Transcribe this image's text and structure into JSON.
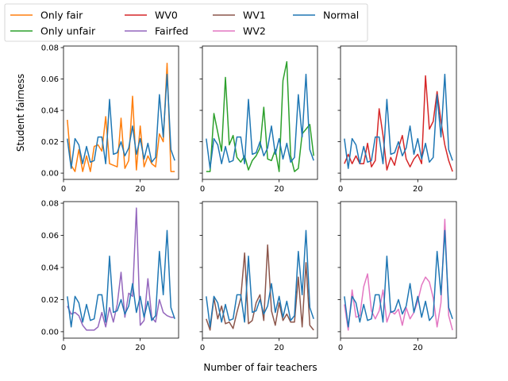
{
  "chart_data": {
    "type": "line",
    "ylabel": "Student fairness",
    "xlabel": "Number of fair teachers",
    "xlim": [
      0,
      30
    ],
    "ylim": [
      -0.004,
      0.081
    ],
    "xticks": [
      0,
      20
    ],
    "yticks": [
      0.0,
      0.02,
      0.04,
      0.06,
      0.08
    ],
    "ytick_labels": [
      "0.00",
      "0.02",
      "0.04",
      "0.06",
      "0.08"
    ],
    "legend": {
      "placement": "top-left, above axes",
      "entries": [
        {
          "name": "Only fair",
          "color": "#ff7f0e"
        },
        {
          "name": "Only unfair",
          "color": "#2ca02c"
        },
        {
          "name": "WV0",
          "color": "#d62728"
        },
        {
          "name": "Fairfed",
          "color": "#9467bd"
        },
        {
          "name": "WV1",
          "color": "#8c564b"
        },
        {
          "name": "WV2",
          "color": "#e377c2"
        },
        {
          "name": "Normal",
          "color": "#1f77b4"
        }
      ]
    },
    "x": [
      1,
      2,
      3,
      4,
      5,
      6,
      7,
      8,
      9,
      10,
      11,
      12,
      13,
      14,
      15,
      16,
      17,
      18,
      19,
      20,
      21,
      22,
      23,
      24,
      25,
      26,
      27,
      28,
      29
    ],
    "normal": {
      "name": "Normal",
      "color": "#1f77b4",
      "values": [
        0.022,
        0.003,
        0.022,
        0.018,
        0.006,
        0.017,
        0.007,
        0.008,
        0.023,
        0.023,
        0.006,
        0.047,
        0.012,
        0.013,
        0.02,
        0.011,
        0.016,
        0.03,
        0.012,
        0.022,
        0.009,
        0.019,
        0.007,
        0.01,
        0.05,
        0.023,
        0.063,
        0.015,
        0.008
      ]
    },
    "panels": [
      {
        "series": {
          "name": "Only fair",
          "color": "#ff7f0e",
          "values": [
            0.034,
            0.005,
            0.001,
            0.015,
            0.001,
            0.011,
            0.001,
            0.017,
            0.018,
            0.014,
            0.036,
            0.006,
            0.005,
            0.004,
            0.035,
            0.003,
            0.008,
            0.049,
            0.002,
            0.03,
            0.004,
            0.011,
            0.006,
            0.004,
            0.025,
            0.02,
            0.07,
            0.001,
            0.001
          ]
        }
      },
      {
        "series": {
          "name": "Only unfair",
          "color": "#2ca02c",
          "values": [
            0.001,
            0.001,
            0.038,
            0.026,
            0.014,
            0.061,
            0.018,
            0.024,
            0.01,
            0.007,
            0.011,
            0.002,
            0.008,
            0.011,
            0.016,
            0.042,
            0.009,
            0.008,
            0.015,
            0.001,
            0.059,
            0.071,
            0.011,
            0.001,
            0.003,
            0.025,
            0.028,
            0.031,
            0.011
          ]
        }
      },
      {
        "series": {
          "name": "WV0",
          "color": "#d62728",
          "values": [
            0.006,
            0.012,
            0.006,
            0.011,
            0.006,
            0.006,
            0.019,
            0.004,
            0.008,
            0.041,
            0.024,
            0.002,
            0.01,
            0.005,
            0.016,
            0.024,
            0.009,
            0.004,
            0.009,
            0.012,
            0.006,
            0.062,
            0.028,
            0.033,
            0.052,
            0.033,
            0.018,
            0.008,
            0.001
          ]
        }
      },
      {
        "series": {
          "name": "Fairfed",
          "color": "#9467bd",
          "values": [
            0.016,
            0.011,
            0.012,
            0.01,
            0.004,
            0.001,
            0.001,
            0.001,
            0.003,
            0.012,
            0.003,
            0.015,
            0.006,
            0.017,
            0.037,
            0.009,
            0.024,
            0.022,
            0.077,
            0.004,
            0.007,
            0.033,
            0.009,
            0.006,
            0.02,
            0.012,
            0.01,
            0.009,
            0.009
          ]
        }
      },
      {
        "series": {
          "name": "WV1",
          "color": "#8c564b",
          "values": [
            0.008,
            0.001,
            0.021,
            0.008,
            0.016,
            0.005,
            0.006,
            0.002,
            0.012,
            0.021,
            0.049,
            0.005,
            0.007,
            0.018,
            0.023,
            0.007,
            0.054,
            0.013,
            0.004,
            0.018,
            0.007,
            0.011,
            0.006,
            0.006,
            0.034,
            0.003,
            0.043,
            0.004,
            0.001
          ]
        }
      },
      {
        "series": {
          "name": "WV2",
          "color": "#e377c2",
          "values": [
            0.017,
            0.001,
            0.026,
            0.009,
            0.01,
            0.028,
            0.036,
            0.013,
            0.008,
            0.013,
            0.026,
            0.006,
            0.013,
            0.011,
            0.014,
            0.004,
            0.015,
            0.008,
            0.012,
            0.019,
            0.029,
            0.034,
            0.031,
            0.021,
            0.003,
            0.018,
            0.07,
            0.01,
            0.001
          ]
        }
      }
    ]
  }
}
